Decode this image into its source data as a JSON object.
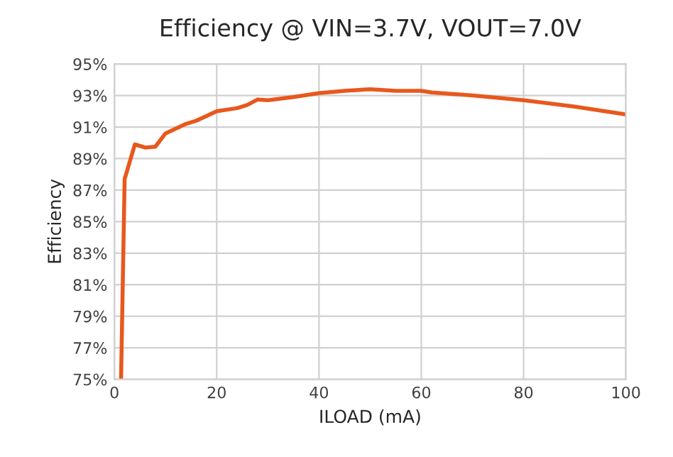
{
  "chart_data": {
    "type": "line",
    "title": "Efficiency @ VIN=3.7V, VOUT=7.0V",
    "xlabel": "ILOAD (mA)",
    "ylabel": "Efficiency",
    "series": [
      {
        "color": "#e8581c",
        "x": [
          1.3,
          2,
          4,
          6,
          8,
          10,
          12,
          14,
          16,
          18,
          20,
          24,
          26,
          28,
          30,
          35,
          40,
          45,
          50,
          55,
          60,
          62,
          70,
          80,
          90,
          100
        ],
        "values": [
          75,
          87.7,
          89.9,
          89.7,
          89.75,
          90.6,
          90.9,
          91.2,
          91.4,
          91.7,
          92.0,
          92.2,
          92.4,
          92.75,
          92.7,
          92.9,
          93.15,
          93.3,
          93.4,
          93.3,
          93.3,
          93.2,
          93.0,
          92.7,
          92.3,
          91.8
        ]
      }
    ],
    "xlim": [
      0,
      100
    ],
    "xticks": [
      0,
      20,
      40,
      60,
      80,
      100
    ],
    "ylim": [
      75,
      95
    ],
    "yticks": [
      {
        "value": 75,
        "label": "75%"
      },
      {
        "value": 77,
        "label": "77%"
      },
      {
        "value": 79,
        "label": "79%"
      },
      {
        "value": 81,
        "label": "81%"
      },
      {
        "value": 83,
        "label": "83%"
      },
      {
        "value": 85,
        "label": "85%"
      },
      {
        "value": 87,
        "label": "87%"
      },
      {
        "value": 89,
        "label": "89%"
      },
      {
        "value": 91,
        "label": "91%"
      },
      {
        "value": 93,
        "label": "93%"
      },
      {
        "value": 95,
        "label": "95%"
      }
    ],
    "grid": true,
    "line_style": "solid",
    "marker": "none"
  }
}
